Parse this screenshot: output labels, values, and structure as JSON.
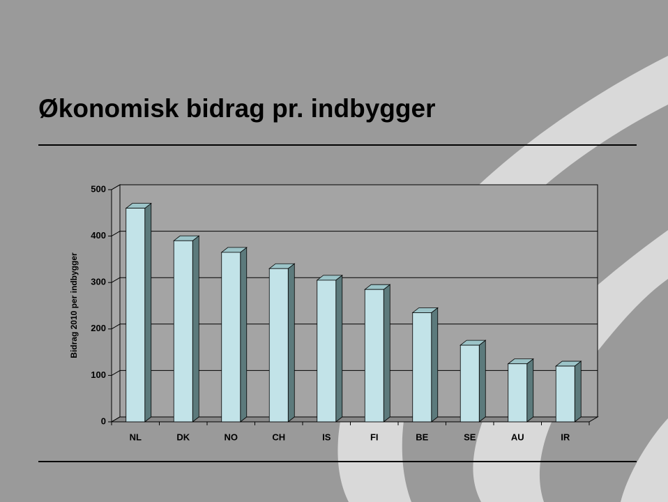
{
  "chart_data": {
    "type": "bar3d",
    "title": "Økonomisk bidrag pr. indbygger",
    "y_label": "Bidrag 2010 per indbygger",
    "categories": [
      "NL",
      "DK",
      "NO",
      "CH",
      "IS",
      "FI",
      "BE",
      "SE",
      "AU",
      "IR"
    ],
    "values": [
      460,
      390,
      365,
      330,
      305,
      285,
      235,
      165,
      125,
      120
    ],
    "color": "#c2e3e8",
    "ylim": [
      0,
      500
    ],
    "yticks": [
      0,
      100,
      200,
      300,
      400,
      500
    ],
    "grid": true
  }
}
